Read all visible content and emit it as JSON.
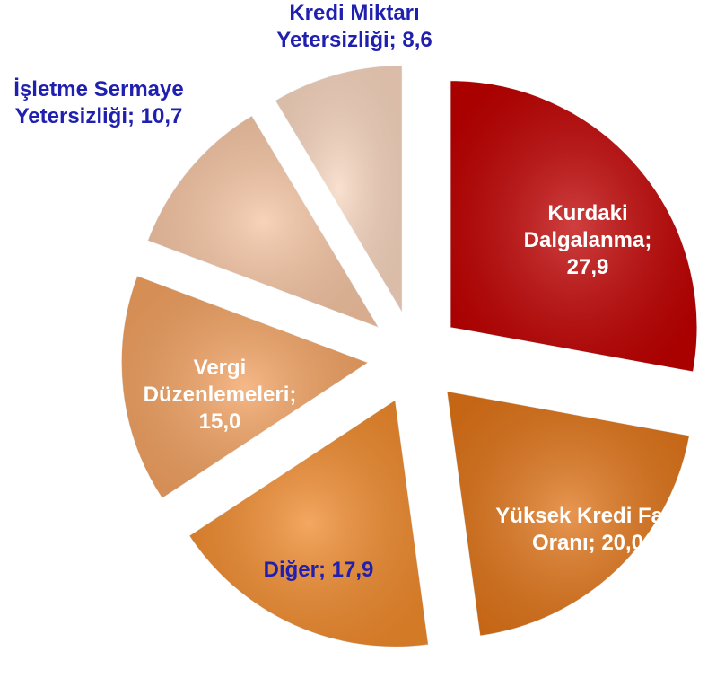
{
  "chart_data": {
    "type": "pie",
    "categories": [
      "Kurdaki Dalgalanma;",
      "Yüksek Kredi Faiz Oranı;",
      "Diğer;",
      "Vergi Düzenlemeleri;",
      "İşletme Sermaye Yetersizliği;",
      "Kredi Miktarı Yetersizliği;"
    ],
    "values": [
      27.9,
      20.0,
      17.9,
      15.0,
      10.7,
      8.6
    ],
    "value_labels": [
      "27,9",
      "20,0",
      "17,9",
      "15,0",
      "10,7",
      "8,6"
    ],
    "colors": [
      "#c00000",
      "#e07418",
      "#f08a2c",
      "#f2a160",
      "#f5c4a2",
      "#f8d6bf"
    ],
    "label_colors": [
      "#ffffff",
      "#ffffff",
      "#1f1fb0",
      "#ffffff",
      "#1f1fb0",
      "#1f1fb0"
    ]
  }
}
